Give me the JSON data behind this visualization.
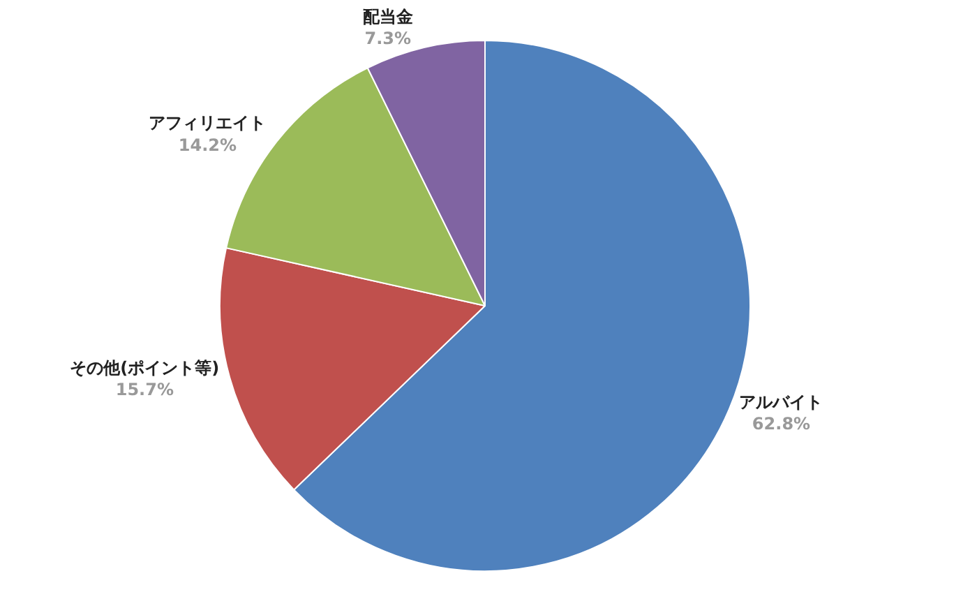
{
  "chart_data": {
    "type": "pie",
    "categories": [
      "アルバイト",
      "その他(ポイント等)",
      "アフィリエイト",
      "配当金"
    ],
    "values": [
      62.8,
      15.7,
      14.2,
      7.3
    ],
    "colors": [
      "#4f81bd",
      "#c0504d",
      "#9bbb59",
      "#8064a2"
    ],
    "value_labels": [
      "62.8%",
      "15.7%",
      "14.2%",
      "7.3%"
    ],
    "legend": false
  }
}
